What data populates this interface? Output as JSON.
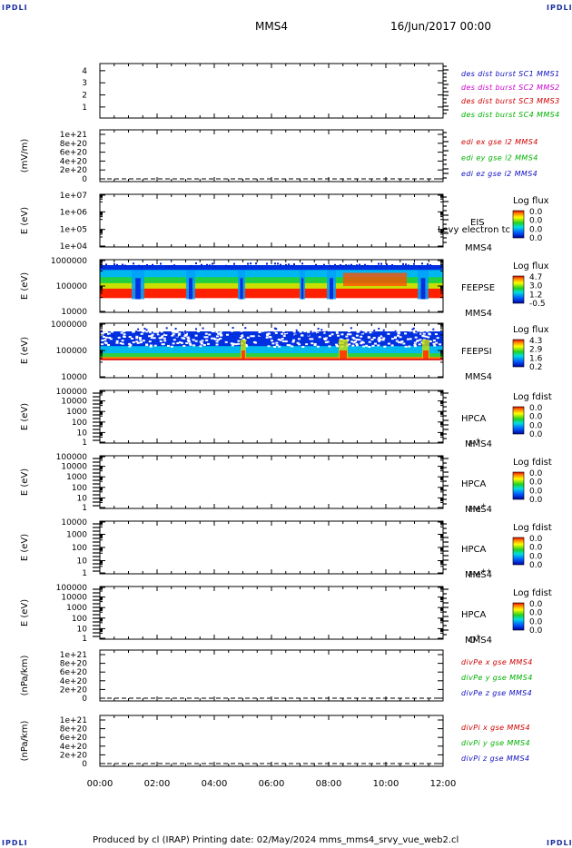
{
  "corners": {
    "tl": "IPDLI",
    "tr": "IPDLI",
    "bl": "IPDLI",
    "br": "IPDLI"
  },
  "header": {
    "spacecraft": "MMS4",
    "datetime": "16/Jun/2017 00:00"
  },
  "footer": {
    "text": "Produced by cl (IRAP)   Printing date: 02/May/2024   mms_mms4_srvy_vue_web2.cl"
  },
  "time_axis": {
    "ticks": [
      "00:00",
      "02:00",
      "04:00",
      "06:00",
      "08:00",
      "10:00",
      "12:00"
    ]
  },
  "colors": {
    "blue": "#1010c0",
    "magenta": "#d000d0",
    "red": "#d00000",
    "green": "#00b000"
  },
  "chart_data": [
    {
      "id": "p1",
      "type": "line",
      "ylabel": "",
      "yticks": [
        "1",
        "2",
        "3",
        "4"
      ],
      "legend": [
        {
          "text": "des dist burst SC1 MMS1",
          "color": "#1010c0"
        },
        {
          "text": "des dist burst SC2 MMS2",
          "color": "#d000d0"
        },
        {
          "text": "des dist burst SC3 MMS3",
          "color": "#d00000"
        },
        {
          "text": "des dist burst SC4 MMS4",
          "color": "#00b000"
        }
      ]
    },
    {
      "id": "p2",
      "type": "line",
      "ylabel": "(mV/m)",
      "yticks": [
        "0",
        "2e+20",
        "4e+20",
        "6e+20",
        "8e+20",
        "1e+21"
      ],
      "legend": [
        {
          "text": "edi ex gse l2 MMS4",
          "color": "#d00000"
        },
        {
          "text": "edi ey gse l2 MMS4",
          "color": "#00b000"
        },
        {
          "text": "edi ez gse l2 MMS4",
          "color": "#1010c0"
        }
      ]
    },
    {
      "id": "p3",
      "type": "heatmap",
      "ylabel": "E (eV)",
      "yticks": [
        "1e+04",
        "1e+05",
        "1e+06",
        "1e+07"
      ],
      "labels": [
        "EIS",
        "MMS4"
      ],
      "overlay": "Levy electron tc",
      "cb_title": "Log flux",
      "cb_ticks": [
        "0.0",
        "0.0",
        "0.0",
        "0.0"
      ]
    },
    {
      "id": "p4",
      "type": "heatmap",
      "ylabel": "E (eV)",
      "yticks": [
        "10000",
        "100000",
        "1000000"
      ],
      "labels": [
        "FEEPSE",
        "MMS4"
      ],
      "cb_title": "Log flux",
      "cb_ticks": [
        "4.7",
        "3.0",
        "1.2",
        "-0.5"
      ]
    },
    {
      "id": "p5",
      "type": "heatmap",
      "ylabel": "E (eV)",
      "yticks": [
        "10000",
        "100000",
        "1000000"
      ],
      "labels": [
        "FEEPSI",
        "MMS4"
      ],
      "cb_title": "Log flux",
      "cb_ticks": [
        "4.3",
        "2.9",
        "1.6",
        "0.2"
      ]
    },
    {
      "id": "p6",
      "type": "heatmap",
      "ylabel": "E (eV)",
      "yticks": [
        "1",
        "10",
        "100",
        "1000",
        "10000",
        "100000"
      ],
      "labels": [
        "HPCA",
        "MMS4"
      ],
      "species": "H",
      "species_sup": "+",
      "cb_title": "Log fdist",
      "cb_ticks": [
        "0.0",
        "0.0",
        "0.0",
        "0.0"
      ]
    },
    {
      "id": "p7",
      "type": "heatmap",
      "ylabel": "E (eV)",
      "yticks": [
        "1",
        "10",
        "100",
        "1000",
        "10000",
        "100000"
      ],
      "labels": [
        "HPCA",
        "MMS4"
      ],
      "species": "He",
      "species_sup": "+",
      "cb_title": "Log fdist",
      "cb_ticks": [
        "0.0",
        "0.0",
        "0.0",
        "0.0"
      ]
    },
    {
      "id": "p8",
      "type": "heatmap",
      "ylabel": "E (eV)",
      "yticks": [
        "1",
        "10",
        "100",
        "1000",
        "10000"
      ],
      "labels": [
        "HPCA",
        "MMS4"
      ],
      "species": "He",
      "species_sup": "++",
      "cb_title": "Log fdist",
      "cb_ticks": [
        "0.0",
        "0.0",
        "0.0",
        "0.0"
      ]
    },
    {
      "id": "p9",
      "type": "heatmap",
      "ylabel": "E (eV)",
      "yticks": [
        "1",
        "10",
        "100",
        "1000",
        "10000",
        "100000"
      ],
      "labels": [
        "HPCA",
        "MMS4"
      ],
      "species": "O",
      "species_sup": "+",
      "cb_title": "Log fdist",
      "cb_ticks": [
        "0.0",
        "0.0",
        "0.0",
        "0.0"
      ]
    },
    {
      "id": "p10",
      "type": "line",
      "ylabel": "(nPa/km)",
      "yticks": [
        "0",
        "2e+20",
        "4e+20",
        "6e+20",
        "8e+20",
        "1e+21"
      ],
      "legend": [
        {
          "text": "divPe x gse MMS4",
          "color": "#d00000"
        },
        {
          "text": "divPe y gse MMS4",
          "color": "#00b000"
        },
        {
          "text": "divPe z gse MMS4",
          "color": "#1010c0"
        }
      ]
    },
    {
      "id": "p11",
      "type": "line",
      "ylabel": "(nPa/km)",
      "yticks": [
        "0",
        "2e+20",
        "4e+20",
        "6e+20",
        "8e+20",
        "1e+21"
      ],
      "legend": [
        {
          "text": "divPi x gse MMS4",
          "color": "#d00000"
        },
        {
          "text": "divPi y gse MMS4",
          "color": "#00b000"
        },
        {
          "text": "divPi z gse MMS4",
          "color": "#1010c0"
        }
      ]
    }
  ]
}
